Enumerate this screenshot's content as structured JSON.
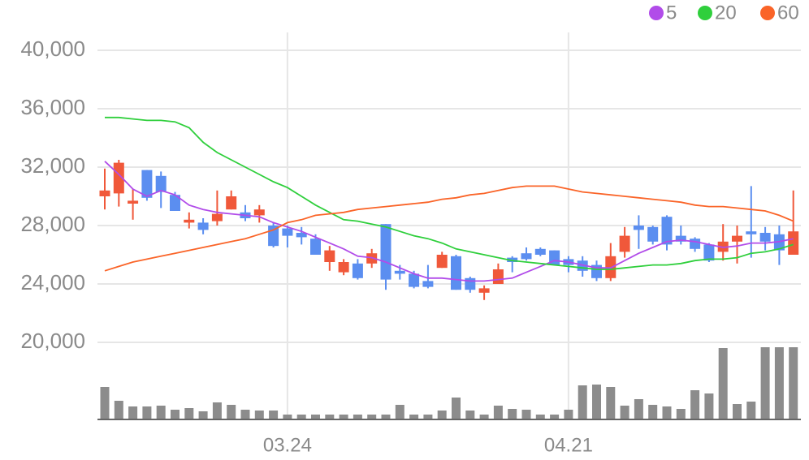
{
  "chart_data": {
    "type": "candlestick",
    "categories": [
      null,
      null,
      null,
      null,
      null,
      null,
      null,
      null,
      null,
      null,
      null,
      null,
      null,
      "03.24",
      null,
      null,
      null,
      null,
      null,
      null,
      null,
      null,
      null,
      null,
      null,
      null,
      null,
      null,
      null,
      null,
      null,
      null,
      null,
      "04.21",
      null,
      null,
      null,
      null,
      null,
      null,
      null,
      null,
      null,
      null,
      null,
      null,
      null,
      null,
      null,
      null
    ],
    "open": [
      30000,
      30200,
      29500,
      31800,
      31400,
      30100,
      28200,
      28200,
      28300,
      29100,
      28900,
      28700,
      28000,
      27800,
      27500,
      27100,
      25500,
      24800,
      25400,
      25400,
      28100,
      24900,
      24700,
      24200,
      25100,
      25900,
      24400,
      23400,
      24000,
      25800,
      26100,
      26400,
      26300,
      25700,
      25600,
      25300,
      24400,
      26200,
      28000,
      27900,
      28600,
      27300,
      27100,
      26700,
      26200,
      26900,
      27600,
      27500,
      27400,
      26000
    ],
    "high": [
      31900,
      32500,
      30500,
      31800,
      31700,
      30300,
      28900,
      28500,
      30400,
      30400,
      29400,
      29400,
      28200,
      28000,
      27900,
      27400,
      26600,
      25700,
      25700,
      26400,
      28100,
      25300,
      24900,
      25300,
      26200,
      26000,
      24500,
      23900,
      25400,
      25900,
      26500,
      26500,
      26300,
      25900,
      25900,
      25600,
      26800,
      27900,
      28700,
      28000,
      28700,
      28000,
      27200,
      26800,
      28100,
      28000,
      30700,
      27900,
      28000,
      30400
    ],
    "low": [
      29100,
      29300,
      28400,
      29700,
      29200,
      29000,
      27800,
      27400,
      28000,
      29100,
      28300,
      28200,
      26500,
      26500,
      26700,
      26000,
      24900,
      24600,
      24300,
      25100,
      23600,
      24300,
      23700,
      23700,
      25100,
      23600,
      23400,
      22900,
      24000,
      24800,
      25600,
      25900,
      25300,
      24800,
      24500,
      24200,
      24200,
      25800,
      26400,
      26700,
      26300,
      26700,
      26200,
      25500,
      25600,
      25400,
      25800,
      26300,
      25300,
      26000
    ],
    "close": [
      30400,
      32300,
      29700,
      29900,
      30300,
      29000,
      28400,
      27700,
      28800,
      30000,
      28500,
      29100,
      26600,
      27300,
      27200,
      26000,
      26300,
      25500,
      24400,
      26100,
      24300,
      24700,
      23800,
      23800,
      26000,
      23600,
      23600,
      23700,
      25000,
      25500,
      25700,
      26000,
      25300,
      25300,
      24900,
      24400,
      25900,
      27300,
      27700,
      26900,
      26700,
      26900,
      26400,
      25600,
      26900,
      27300,
      27400,
      26900,
      26300,
      27600
    ],
    "up_color": "#f0583a",
    "down_color": "#5b8ef0",
    "series": [
      {
        "name": "5",
        "color": "#b14ce9",
        "values": [
          32400,
          31500,
          30500,
          30000,
          30400,
          30100,
          29400,
          29100,
          28900,
          28800,
          28700,
          28600,
          28200,
          27900,
          27600,
          27200,
          26800,
          26400,
          25900,
          25800,
          25500,
          25100,
          24700,
          24400,
          24400,
          24300,
          24200,
          24200,
          24300,
          24400,
          24800,
          25200,
          25600,
          25500,
          25300,
          25100,
          25100,
          25600,
          26100,
          26500,
          26900,
          27000,
          26900,
          26700,
          26500,
          26600,
          26800,
          26800,
          26900,
          27100
        ]
      },
      {
        "name": "20",
        "color": "#2fcf3c",
        "values": [
          35400,
          35400,
          35300,
          35200,
          35200,
          35100,
          34700,
          33700,
          33000,
          32500,
          32000,
          31500,
          31000,
          30600,
          30000,
          29400,
          28900,
          28400,
          28300,
          28100,
          27900,
          27600,
          27300,
          27100,
          26800,
          26400,
          26200,
          26000,
          25800,
          25600,
          25500,
          25400,
          25300,
          25200,
          25100,
          25000,
          25000,
          25100,
          25200,
          25300,
          25300,
          25400,
          25600,
          25700,
          25700,
          25800,
          26100,
          26200,
          26400,
          26700
        ]
      },
      {
        "name": "60",
        "color": "#fa6428",
        "values": [
          24900,
          25200,
          25500,
          25700,
          25900,
          26100,
          26300,
          26500,
          26700,
          26900,
          27100,
          27400,
          27700,
          28200,
          28400,
          28700,
          28800,
          28900,
          29100,
          29200,
          29300,
          29400,
          29500,
          29600,
          29800,
          29900,
          30100,
          30200,
          30400,
          30600,
          30700,
          30700,
          30700,
          30500,
          30300,
          30200,
          30100,
          30000,
          29900,
          29800,
          29700,
          29600,
          29400,
          29300,
          29300,
          29200,
          29100,
          29000,
          28700,
          28300
        ]
      }
    ],
    "volume": {
      "color": "#8c8c8c",
      "ylim": [
        0,
        100
      ],
      "values": [
        40,
        23,
        16,
        16,
        17,
        12,
        14,
        10,
        21,
        18,
        12,
        11,
        11,
        6,
        6,
        6,
        6,
        6,
        6,
        6,
        6,
        18,
        6,
        6,
        11,
        27,
        11,
        6,
        17,
        13,
        12,
        6,
        6,
        12,
        42,
        43,
        40,
        17,
        25,
        18,
        16,
        13,
        36,
        32,
        88,
        19,
        22,
        89,
        89,
        89
      ]
    },
    "ylim": [
      20000,
      40000
    ],
    "yticks": [
      {
        "value": 20000,
        "label": "20,000"
      },
      {
        "value": 24000,
        "label": "24,000"
      },
      {
        "value": 28000,
        "label": "28,000"
      },
      {
        "value": 32000,
        "label": "32,000"
      },
      {
        "value": 36000,
        "label": "36,000"
      },
      {
        "value": 40000,
        "label": "40,000"
      }
    ],
    "grid": true
  }
}
